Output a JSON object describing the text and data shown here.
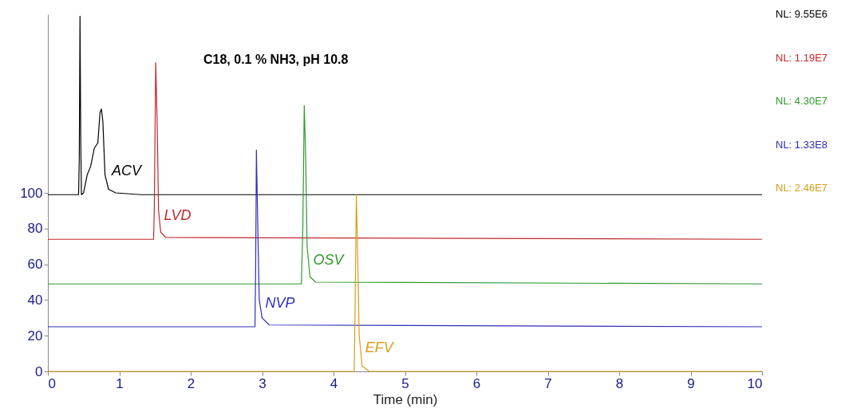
{
  "chart_data": {
    "type": "line",
    "title": "C18, 0.1 % NH3, pH 10.8",
    "xlabel": "Time (min)",
    "xlim": [
      0,
      10
    ],
    "xticks": [
      0,
      1,
      2,
      3,
      4,
      5,
      6,
      7,
      8,
      9,
      10
    ],
    "ylim": [
      0,
      200
    ],
    "yticks": [
      0,
      20,
      40,
      60,
      80,
      100
    ],
    "grid": false,
    "marker": "none",
    "line_style": "solid",
    "annotations": [
      "NL: 9.55E6",
      "NL: 1.19E7",
      "NL: 4.30E7",
      "NL: 1.33E8",
      "NL: 2.46E7"
    ],
    "series": [
      {
        "name": "ACV",
        "color": "#000000",
        "x": [
          0,
          0.43,
          0.44,
          0.45,
          0.46,
          0.47,
          0.5,
          0.55,
          0.6,
          0.65,
          0.7,
          0.73,
          0.75,
          0.77,
          0.8,
          0.85,
          0.95,
          1.3,
          10
        ],
        "values": [
          99,
          99,
          120,
          199,
          130,
          99,
          100,
          110,
          115,
          125,
          128,
          145,
          147,
          140,
          110,
          102,
          100,
          99,
          99
        ]
      },
      {
        "name": "LVD",
        "color": "#c0282d",
        "x": [
          0,
          1.48,
          1.49,
          1.51,
          1.53,
          1.55,
          1.58,
          1.65,
          10
        ],
        "values": [
          74,
          74,
          90,
          173,
          140,
          90,
          78,
          75,
          74
        ]
      },
      {
        "name": "OSV",
        "color": "#2e9a2e",
        "x": [
          0,
          3.55,
          3.57,
          3.59,
          3.61,
          3.63,
          3.67,
          3.75,
          10
        ],
        "values": [
          49,
          49,
          80,
          149,
          120,
          70,
          53,
          50,
          49
        ]
      },
      {
        "name": "NVP",
        "color": "#2e2eb8",
        "x": [
          0,
          2.9,
          2.91,
          2.92,
          2.94,
          2.96,
          3.0,
          3.1,
          10
        ],
        "values": [
          25,
          25,
          60,
          124,
          80,
          40,
          30,
          26,
          25
        ]
      },
      {
        "name": "EFV",
        "color": "#d4a017",
        "x": [
          0,
          4.29,
          4.3,
          4.32,
          4.34,
          4.36,
          4.4,
          4.5,
          10
        ],
        "values": [
          0,
          0,
          30,
          99,
          60,
          20,
          3,
          0,
          0
        ]
      }
    ]
  }
}
